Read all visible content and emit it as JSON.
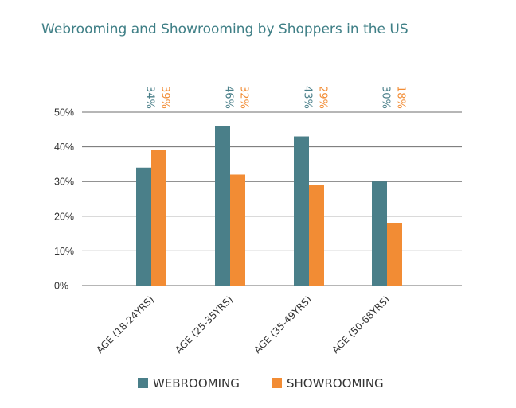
{
  "chart_data": {
    "type": "bar",
    "title": "Webrooming and Showrooming by Shoppers in the US",
    "categories": [
      "AGE (18-24YRS)",
      "AGE (25-35YRS)",
      "AGE (35-49YRS)",
      "AGE (50-68YRS)"
    ],
    "series": [
      {
        "name": "WEBROOMING",
        "color": "#4a7f89",
        "values": [
          34,
          46,
          43,
          30
        ],
        "labels": [
          "34%",
          "46%",
          "43%",
          "30%"
        ]
      },
      {
        "name": "SHOWROOMING",
        "color": "#f28c34",
        "values": [
          39,
          32,
          29,
          18
        ],
        "labels": [
          "39%",
          "32%",
          "29%",
          "18%"
        ]
      }
    ],
    "yticks": [
      0,
      10,
      20,
      30,
      40,
      50
    ],
    "ytick_labels": [
      "0%",
      "10%",
      "20%",
      "30%",
      "40%",
      "50%"
    ],
    "ylim": [
      0,
      50
    ],
    "xlabel": "",
    "ylabel": "",
    "grid": true,
    "legend_position": "bottom"
  }
}
